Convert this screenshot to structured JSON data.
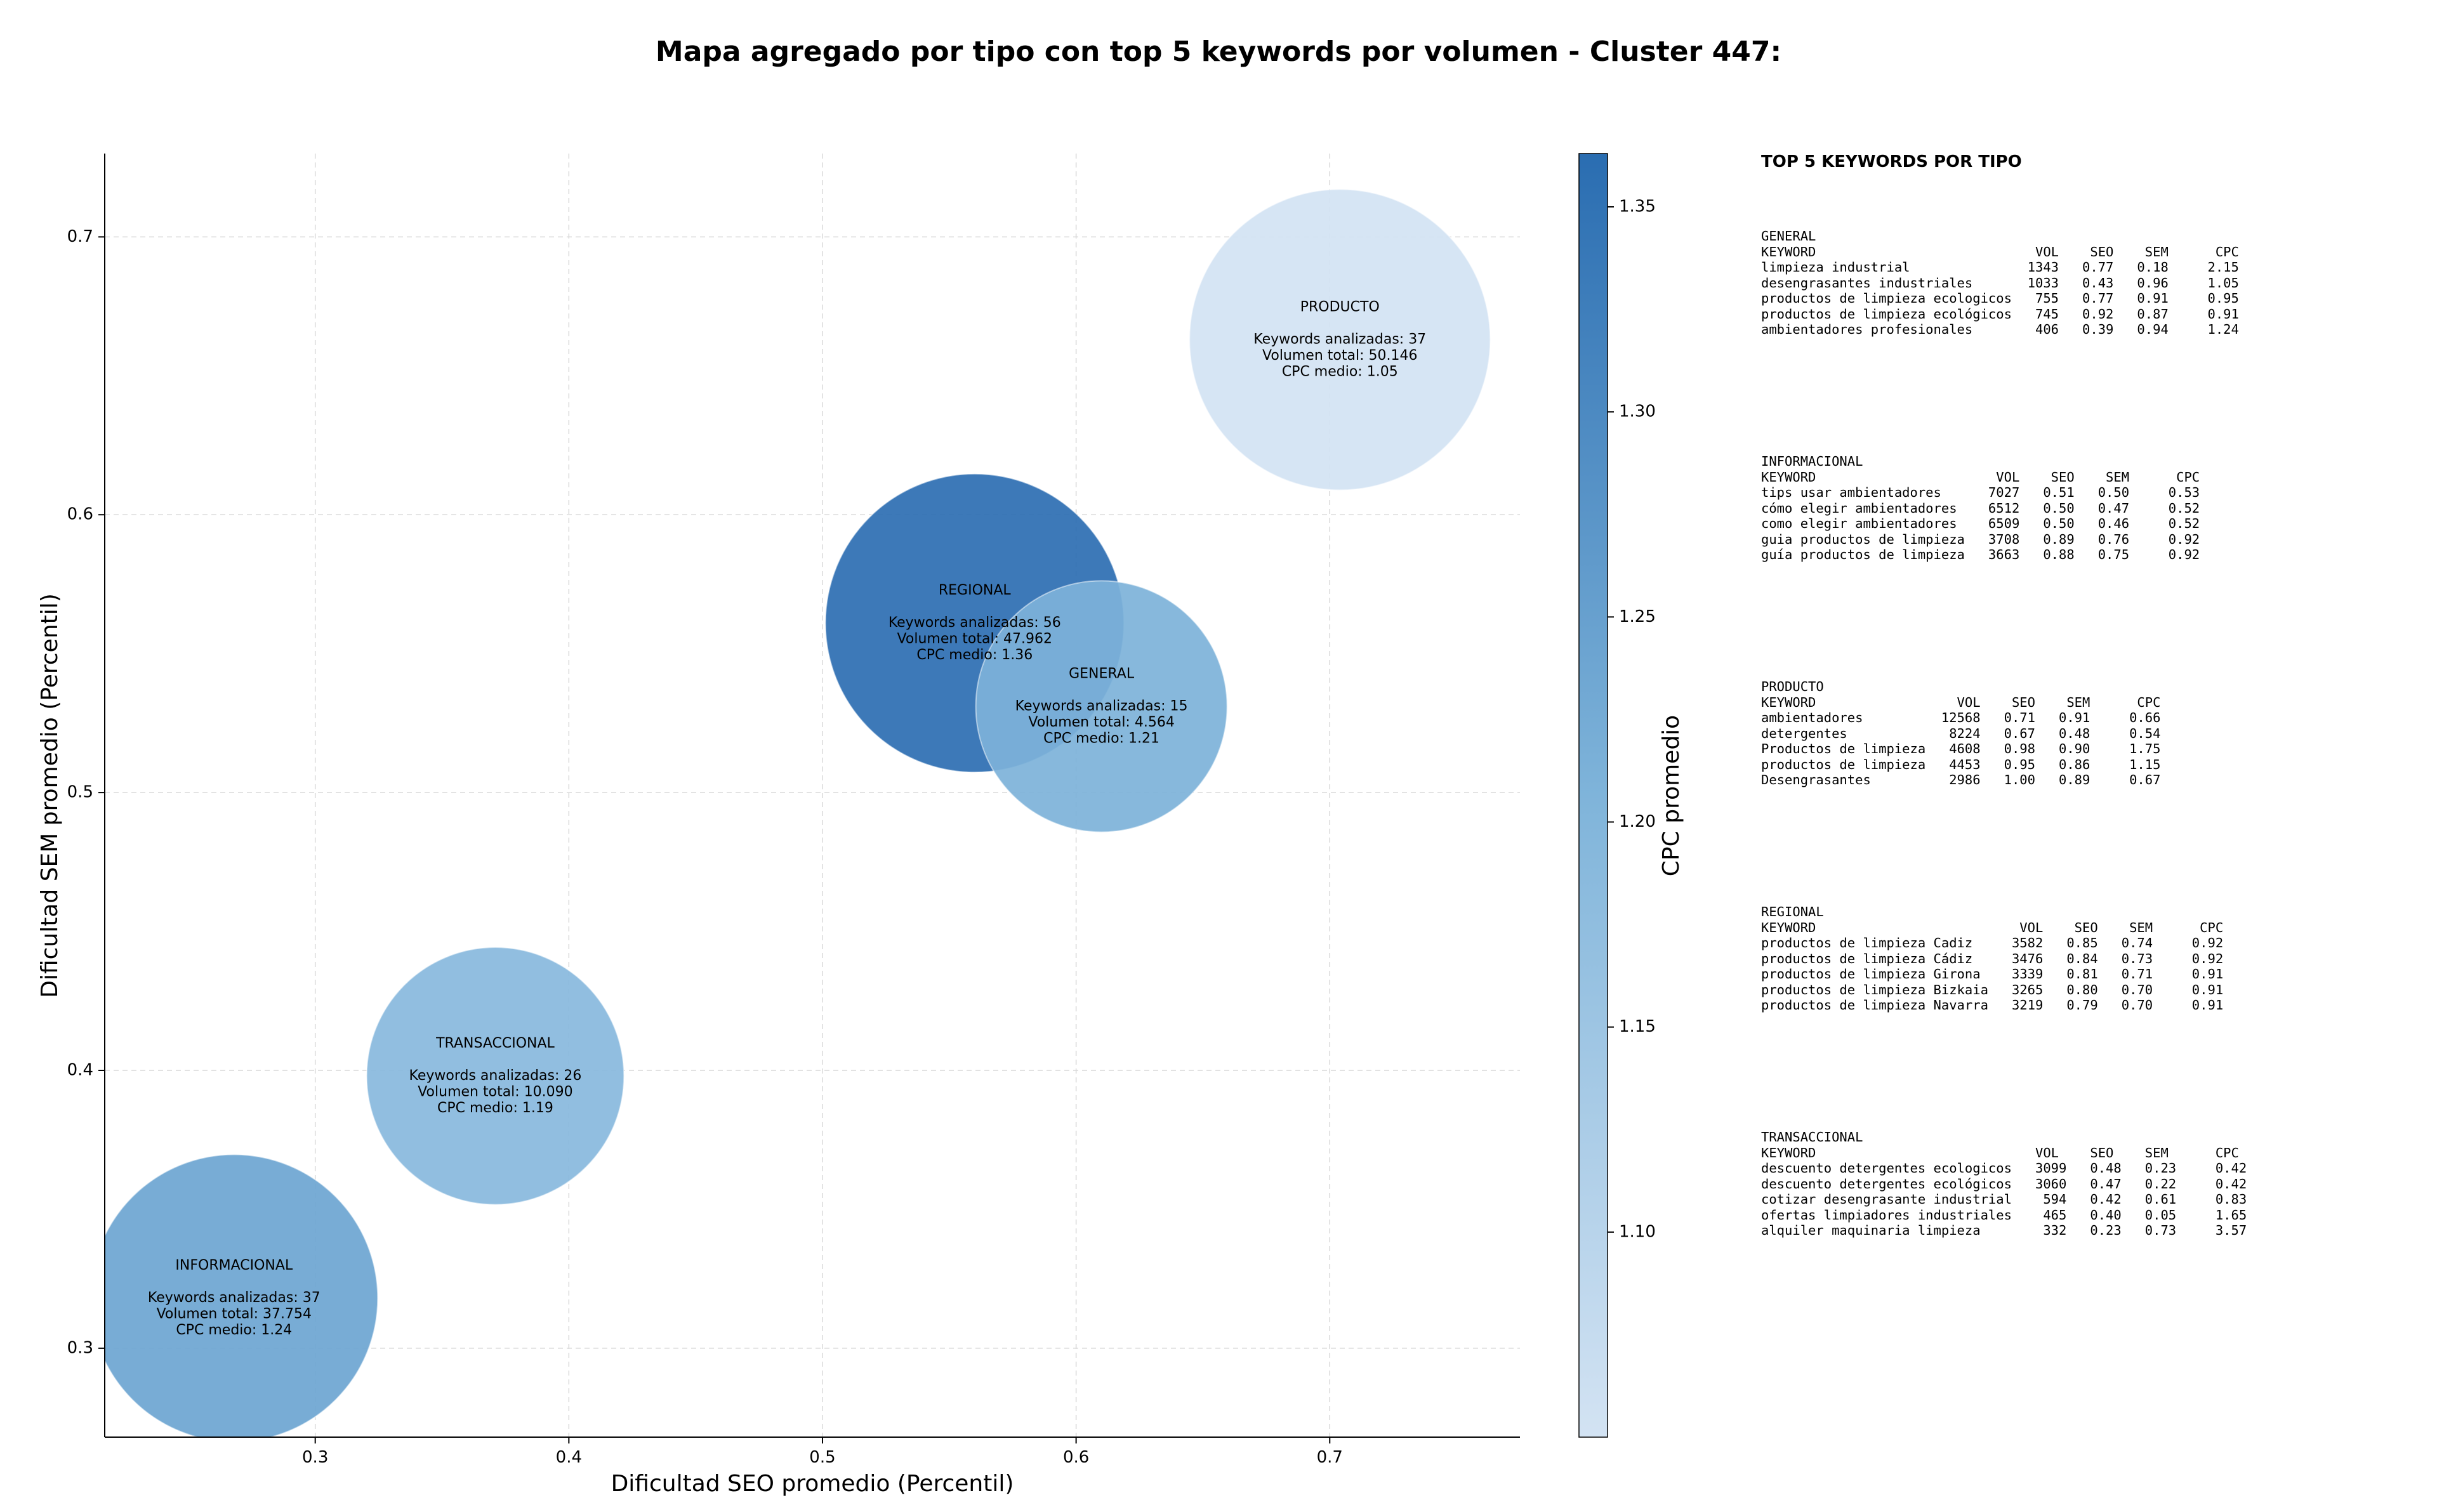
{
  "chart_data": {
    "type": "scatter",
    "title": "Mapa agregado por tipo con top 5 keywords por volumen - Cluster 447:",
    "xlabel": "Dificultad SEO promedio (Percentil)",
    "ylabel": "Dificultad SEM promedio (Percentil)",
    "xlim": [
      0.217,
      0.775
    ],
    "ylim": [
      0.268,
      0.73
    ],
    "xticks": [
      "0.3",
      "0.4",
      "0.5",
      "0.6",
      "0.7"
    ],
    "xtick_values": [
      0.3,
      0.4,
      0.5,
      0.6,
      0.7
    ],
    "yticks": [
      "0.3",
      "0.4",
      "0.5",
      "0.6",
      "0.7"
    ],
    "ytick_values": [
      0.3,
      0.4,
      0.5,
      0.6,
      0.7
    ],
    "grid": true,
    "colorbar": {
      "label": "CPC promedio",
      "min": 1.05,
      "max": 1.363,
      "ticks": [
        "1.10",
        "1.15",
        "1.20",
        "1.25",
        "1.30",
        "1.35"
      ],
      "tick_values": [
        1.1,
        1.15,
        1.2,
        1.25,
        1.3,
        1.35
      ],
      "color_low": "#d3e3f3",
      "color_high": "#2a6db1"
    },
    "bubbles": [
      {
        "type": "INFORMACIONAL",
        "x": 0.268,
        "y": 0.318,
        "cpc": 1.24,
        "keywords": 37,
        "volume": 37754,
        "lines": [
          "INFORMACIONAL",
          "",
          "Keywords analizadas: 37",
          "Volumen total: 37.754",
          "CPC medio: 1.24"
        ]
      },
      {
        "type": "TRANSACCIONAL",
        "x": 0.371,
        "y": 0.398,
        "cpc": 1.19,
        "keywords": 26,
        "volume": 10090,
        "lines": [
          "TRANSACCIONAL",
          "",
          "Keywords analizadas: 26",
          "Volumen total: 10.090",
          "CPC medio: 1.19"
        ]
      },
      {
        "type": "REGIONAL",
        "x": 0.56,
        "y": 0.561,
        "cpc": 1.36,
        "keywords": 56,
        "volume": 47962,
        "lines": [
          "REGIONAL",
          "",
          "Keywords analizadas: 56",
          "Volumen total: 47.962",
          "CPC medio: 1.36"
        ]
      },
      {
        "type": "GENERAL",
        "x": 0.61,
        "y": 0.531,
        "cpc": 1.21,
        "keywords": 15,
        "volume": 4564,
        "lines": [
          "GENERAL",
          "",
          "Keywords analizadas: 15",
          "Volumen total: 4.564",
          "CPC medio: 1.21"
        ]
      },
      {
        "type": "PRODUCTO",
        "x": 0.704,
        "y": 0.663,
        "cpc": 1.05,
        "keywords": 37,
        "volume": 50146,
        "lines": [
          "PRODUCTO",
          "",
          "Keywords analizadas: 37",
          "Volumen total: 50.146",
          "CPC medio: 1.05"
        ]
      }
    ]
  },
  "keywords_panel": {
    "heading": "TOP 5 KEYWORDS POR TIPO",
    "blocks": [
      {
        "lines": [
          "GENERAL",
          "KEYWORD                            VOL    SEO    SEM      CPC",
          "limpieza industrial               1343   0.77   0.18     2.15",
          "desengrasantes industriales       1033   0.43   0.96     1.05",
          "productos de limpieza ecologicos   755   0.77   0.91     0.95",
          "productos de limpieza ecológicos   745   0.92   0.87     0.91",
          "ambientadores profesionales        406   0.39   0.94     1.24"
        ]
      },
      {
        "lines": [
          "INFORMACIONAL",
          "KEYWORD                       VOL    SEO    SEM      CPC",
          "tips usar ambientadores      7027   0.51   0.50     0.53",
          "cómo elegir ambientadores    6512   0.50   0.47     0.52",
          "como elegir ambientadores    6509   0.50   0.46     0.52",
          "guia productos de limpieza   3708   0.89   0.76     0.92",
          "guía productos de limpieza   3663   0.88   0.75     0.92"
        ]
      },
      {
        "lines": [
          "PRODUCTO",
          "KEYWORD                  VOL    SEO    SEM      CPC",
          "ambientadores          12568   0.71   0.91     0.66",
          "detergentes             8224   0.67   0.48     0.54",
          "Productos de limpieza   4608   0.98   0.90     1.75",
          "productos de limpieza   4453   0.95   0.86     1.15",
          "Desengrasantes          2986   1.00   0.89     0.67"
        ]
      },
      {
        "lines": [
          "REGIONAL",
          "KEYWORD                          VOL    SEO    SEM      CPC",
          "productos de limpieza Cadiz     3582   0.85   0.74     0.92",
          "productos de limpieza Cádiz     3476   0.84   0.73     0.92",
          "productos de limpieza Girona    3339   0.81   0.71     0.91",
          "productos de limpieza Bizkaia   3265   0.80   0.70     0.91",
          "productos de limpieza Navarra   3219   0.79   0.70     0.91"
        ]
      },
      {
        "lines": [
          "TRANSACCIONAL",
          "KEYWORD                            VOL    SEO    SEM      CPC",
          "descuento detergentes ecologicos   3099   0.48   0.23     0.42",
          "descuento detergentes ecológicos   3060   0.47   0.22     0.42",
          "cotizar desengrasante industrial    594   0.42   0.61     0.83",
          "ofertas limpiadores industriales    465   0.40   0.05     1.65",
          "alquiler maquinaria limpieza        332   0.23   0.73     3.57"
        ]
      }
    ]
  }
}
